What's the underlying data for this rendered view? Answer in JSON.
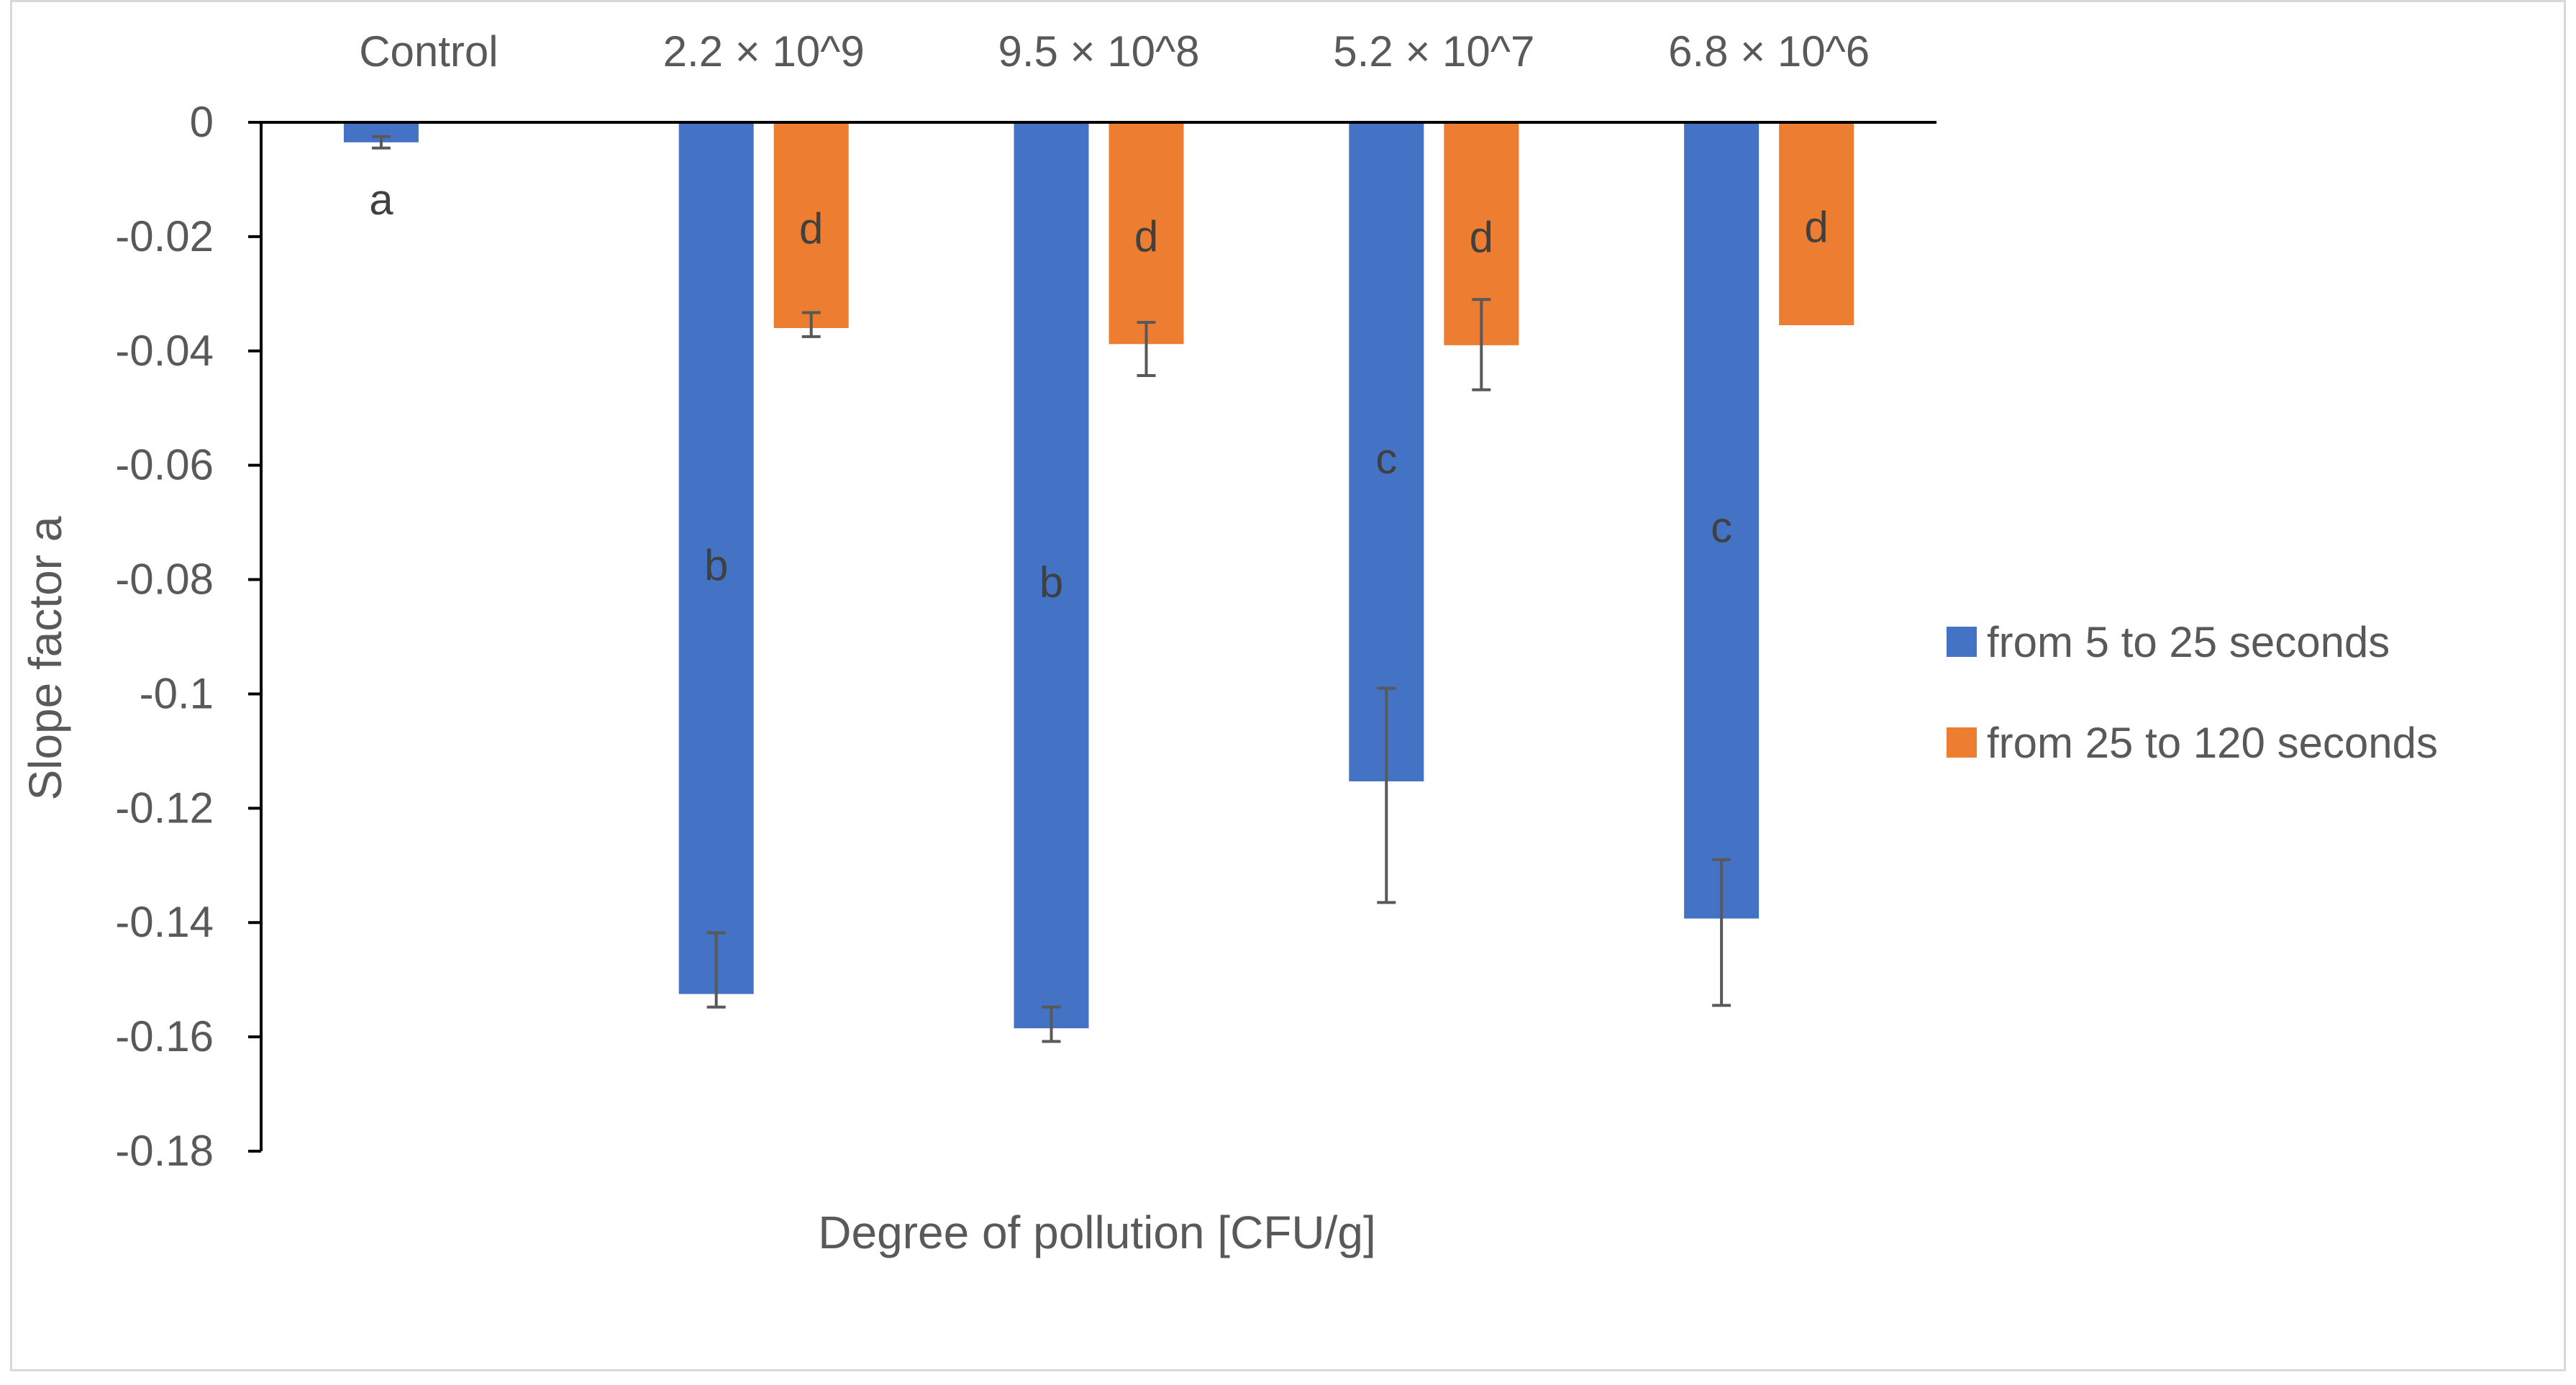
{
  "chart_data": {
    "type": "bar",
    "title": "",
    "xlabel": "Degree of pollution [CFU/g]",
    "ylabel": "Slope factor a",
    "categories": [
      "Control",
      "2.2 × 10^9",
      "9.5 × 10^8",
      "5.2 × 10^7",
      "6.8 × 10^6"
    ],
    "ylim": [
      -0.18,
      0
    ],
    "yticks": [
      0,
      -0.02,
      -0.04,
      -0.06,
      -0.08,
      -0.1,
      -0.12,
      -0.14,
      -0.16,
      -0.18
    ],
    "ytick_labels": [
      "0",
      "-0.02",
      "-0.04",
      "-0.06",
      "-0.08",
      "-0.1",
      "-0.12",
      "-0.14",
      "-0.16",
      "-0.18"
    ],
    "grid": false,
    "legend_position": "right",
    "series": [
      {
        "name": "from 5 to 25 seconds",
        "color": "#4472c4",
        "values": [
          -0.0035,
          -0.1525,
          -0.1585,
          -0.1153,
          -0.1393
        ],
        "error_low": [
          -0.0045,
          -0.1548,
          -0.1608,
          -0.1365,
          -0.1545
        ],
        "error_high": [
          -0.0025,
          -0.1418,
          -0.1548,
          -0.099,
          -0.129
        ],
        "letters": [
          "a",
          "b",
          "b",
          "c",
          "c"
        ]
      },
      {
        "name": "from 25 to 120 seconds",
        "color": "#ed7d31",
        "values": [
          null,
          -0.036,
          -0.0388,
          -0.039,
          -0.0355
        ],
        "error_low": [
          null,
          -0.0375,
          -0.0443,
          -0.0468,
          null
        ],
        "error_high": [
          null,
          -0.0333,
          -0.035,
          -0.031,
          null
        ],
        "letters": [
          null,
          "d",
          "d",
          "d",
          "d"
        ]
      }
    ]
  }
}
